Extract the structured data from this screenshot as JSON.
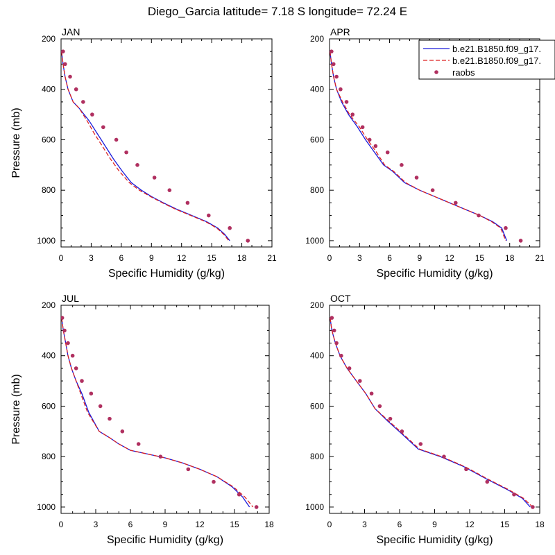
{
  "title": "Diego_Garcia  latitude= 7.18 S longitude= 72.24 E",
  "colors": {
    "model1": "#1a1adb",
    "model2": "#dd2222",
    "raobs": "#b03060"
  },
  "legend": {
    "entries": [
      "b.e21.B1850.f09_g17.",
      "b.e21.B1850.f09_g17.",
      "raobs"
    ]
  },
  "chart_data": [
    {
      "type": "line",
      "panel": "JAN",
      "title": "JAN",
      "xlabel": "Specific Humidity (g/kg)",
      "ylabel": "Pressure (mb)",
      "xlim": [
        0,
        21
      ],
      "ylim": [
        1025,
        200
      ],
      "xticks": [
        0,
        3,
        6,
        9,
        12,
        15,
        18,
        21
      ],
      "yticks": [
        200,
        400,
        600,
        800,
        1000
      ],
      "series": [
        {
          "name": "b.e21.B1850.f09_g17.",
          "style": "solid",
          "x": [
            0.05,
            0.2,
            0.4,
            0.7,
            1.2,
            1.8,
            2.8,
            3.6,
            4.4,
            5.2,
            6.1,
            7.0,
            8.0,
            9.0,
            10.2,
            11.5,
            13.0,
            14.5,
            15.6,
            16.3,
            16.8
          ],
          "y": [
            250,
            300,
            350,
            400,
            450,
            475,
            525,
            575,
            625,
            675,
            725,
            770,
            800,
            825,
            850,
            875,
            900,
            925,
            950,
            975,
            1000
          ]
        },
        {
          "name": "b.e21.B1850.f09_g17.",
          "style": "dashed",
          "x": [
            0.05,
            0.2,
            0.4,
            0.7,
            1.2,
            1.8,
            2.6,
            3.3,
            4.1,
            4.9,
            5.8,
            6.8,
            7.8,
            8.9,
            10.1,
            11.4,
            12.9,
            14.4,
            15.5,
            16.2,
            16.7
          ],
          "y": [
            250,
            300,
            350,
            400,
            450,
            475,
            525,
            575,
            625,
            675,
            725,
            770,
            800,
            825,
            850,
            875,
            900,
            925,
            950,
            975,
            1000
          ]
        },
        {
          "name": "raobs",
          "style": "dots",
          "x": [
            0.2,
            0.4,
            0.9,
            1.5,
            2.2,
            3.1,
            4.2,
            5.5,
            6.5,
            7.6,
            9.3,
            10.8,
            12.6,
            14.7,
            16.8,
            18.6
          ],
          "y": [
            250,
            300,
            350,
            400,
            450,
            500,
            550,
            600,
            650,
            700,
            750,
            800,
            850,
            900,
            950,
            1000
          ]
        }
      ]
    },
    {
      "type": "line",
      "panel": "APR",
      "title": "APR",
      "xlabel": "Specific Humidity (g/kg)",
      "ylabel": "",
      "xlim": [
        0,
        21
      ],
      "ylim": [
        1025,
        200
      ],
      "xticks": [
        0,
        3,
        6,
        9,
        12,
        15,
        18,
        21
      ],
      "yticks": [
        200,
        400,
        600,
        800,
        1000
      ],
      "series": [
        {
          "name": "b.e21.B1850.f09_g17.",
          "style": "solid",
          "x": [
            0.05,
            0.2,
            0.4,
            0.7,
            1.2,
            1.9,
            2.8,
            3.6,
            4.5,
            5.4,
            6.3,
            7.5,
            9.0,
            10.5,
            12.0,
            13.5,
            15.0,
            16.3,
            17.2,
            17.7
          ],
          "y": [
            250,
            300,
            350,
            400,
            450,
            500,
            550,
            600,
            650,
            700,
            725,
            770,
            800,
            825,
            850,
            875,
            900,
            925,
            950,
            1000
          ]
        },
        {
          "name": "b.e21.B1850.f09_g17.",
          "style": "dashed",
          "x": [
            0.05,
            0.2,
            0.4,
            0.7,
            1.3,
            2.0,
            3.0,
            3.8,
            4.7,
            5.5,
            6.4,
            7.6,
            9.0,
            10.5,
            12.0,
            13.5,
            15.0,
            16.2,
            17.1,
            17.6
          ],
          "y": [
            250,
            300,
            350,
            400,
            450,
            500,
            550,
            600,
            650,
            700,
            725,
            770,
            800,
            825,
            850,
            875,
            900,
            925,
            950,
            1000
          ]
        },
        {
          "name": "raobs",
          "style": "dots",
          "x": [
            0.2,
            0.4,
            0.7,
            1.1,
            1.7,
            2.3,
            3.3,
            4.0,
            4.6,
            5.8,
            7.2,
            8.7,
            10.3,
            12.6,
            14.9,
            17.6,
            19.1
          ],
          "y": [
            250,
            300,
            350,
            400,
            450,
            500,
            550,
            600,
            625,
            650,
            700,
            750,
            800,
            850,
            900,
            950,
            1000
          ]
        }
      ]
    },
    {
      "type": "line",
      "panel": "JUL",
      "title": "JUL",
      "xlabel": "Specific Humidity (g/kg)",
      "ylabel": "Pressure (mb)",
      "xlim": [
        0,
        18
      ],
      "ylim": [
        1025,
        200
      ],
      "xticks": [
        0,
        3,
        6,
        9,
        12,
        15,
        18
      ],
      "yticks": [
        200,
        400,
        600,
        800,
        1000
      ],
      "series": [
        {
          "name": "b.e21.B1850.f09_g17.",
          "style": "solid",
          "x": [
            0.05,
            0.2,
            0.4,
            0.6,
            0.9,
            1.3,
            1.8,
            2.4,
            3.3,
            4.2,
            5.0,
            6.0,
            7.5,
            9.0,
            10.5,
            12.0,
            13.5,
            14.8,
            15.7,
            16.3
          ],
          "y": [
            250,
            300,
            350,
            400,
            450,
            500,
            550,
            625,
            700,
            725,
            750,
            775,
            790,
            805,
            825,
            850,
            880,
            920,
            960,
            1000
          ]
        },
        {
          "name": "b.e21.B1850.f09_g17.",
          "style": "dashed",
          "x": [
            0.05,
            0.2,
            0.4,
            0.6,
            0.9,
            1.3,
            1.7,
            2.3,
            3.3,
            4.2,
            5.0,
            6.0,
            7.5,
            9.0,
            10.5,
            12.0,
            13.5,
            14.9,
            15.9,
            16.6
          ],
          "y": [
            250,
            300,
            350,
            400,
            450,
            500,
            550,
            625,
            700,
            725,
            750,
            775,
            790,
            805,
            825,
            850,
            880,
            920,
            960,
            1000
          ]
        },
        {
          "name": "raobs",
          "style": "dots",
          "x": [
            0.1,
            0.3,
            0.6,
            1.0,
            1.3,
            1.8,
            2.6,
            3.4,
            4.2,
            5.3,
            6.7,
            8.6,
            11.0,
            13.2,
            15.4,
            16.9
          ],
          "y": [
            250,
            300,
            350,
            400,
            450,
            500,
            550,
            600,
            650,
            700,
            750,
            800,
            850,
            900,
            950,
            1000
          ]
        }
      ]
    },
    {
      "type": "line",
      "panel": "OCT",
      "title": "OCT",
      "xlabel": "Specific Humidity (g/kg)",
      "ylabel": "",
      "xlim": [
        0,
        18
      ],
      "ylim": [
        1025,
        200
      ],
      "xticks": [
        0,
        3,
        6,
        9,
        12,
        15,
        18
      ],
      "yticks": [
        200,
        400,
        600,
        800,
        1000
      ],
      "series": [
        {
          "name": "b.e21.B1850.f09_g17.",
          "style": "solid",
          "x": [
            0.05,
            0.2,
            0.5,
            0.9,
            1.5,
            2.3,
            3.1,
            3.9,
            5.0,
            6.2,
            7.6,
            9.5,
            11.5,
            13.5,
            15.2,
            16.5,
            17.2
          ],
          "y": [
            250,
            300,
            350,
            400,
            450,
            500,
            550,
            610,
            660,
            710,
            770,
            800,
            840,
            890,
            930,
            965,
            1000
          ]
        },
        {
          "name": "b.e21.B1850.f09_g17.",
          "style": "dashed",
          "x": [
            0.05,
            0.2,
            0.5,
            0.9,
            1.5,
            2.3,
            3.1,
            3.9,
            5.1,
            6.3,
            7.7,
            9.6,
            11.6,
            13.6,
            15.3,
            16.6,
            17.4
          ],
          "y": [
            250,
            300,
            350,
            400,
            450,
            500,
            550,
            610,
            660,
            710,
            770,
            800,
            840,
            890,
            930,
            965,
            1000
          ]
        },
        {
          "name": "raobs",
          "style": "dots",
          "x": [
            0.2,
            0.4,
            0.6,
            1.0,
            1.7,
            2.6,
            3.6,
            4.3,
            5.2,
            6.2,
            7.8,
            9.8,
            11.7,
            13.5,
            15.8,
            17.4
          ],
          "y": [
            250,
            300,
            350,
            400,
            450,
            500,
            550,
            600,
            650,
            700,
            750,
            800,
            850,
            900,
            950,
            1000
          ]
        }
      ]
    }
  ]
}
